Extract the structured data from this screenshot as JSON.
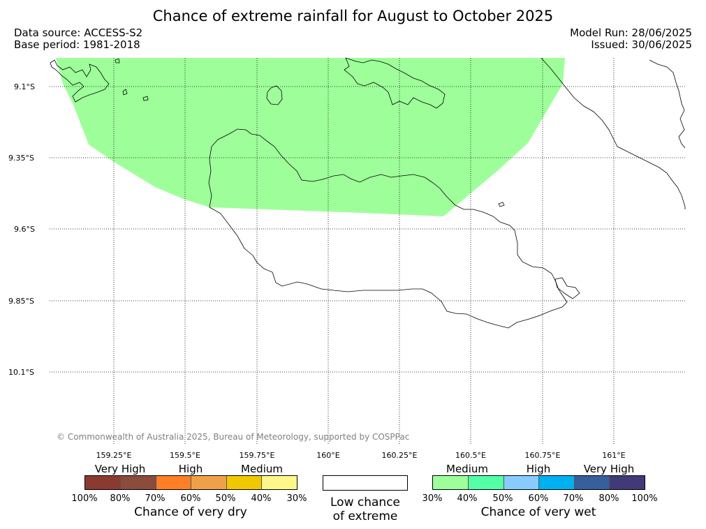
{
  "title": "Chance of extreme rainfall for August to October 2025",
  "meta": {
    "data_source": "Data source: ACCESS-S2",
    "base_period": "Base period: 1981-2018",
    "model_run": "Model Run: 28/06/2025",
    "issued": "Issued: 30/06/2025"
  },
  "map": {
    "lat_labels": [
      "9.1°S",
      "9.35°S",
      "9.6°S",
      "9.85°S",
      "10.1°S"
    ],
    "lon_labels": [
      "159.25°E",
      "159.5°E",
      "159.75°E",
      "160°E",
      "160.25°E",
      "160.5°E",
      "160.75°E",
      "161°E"
    ],
    "shaded_region_category": "Very wet: Medium (30%–40%)",
    "shaded_color": "#9eff9a",
    "copyright": "© Commonwealth of Australia 2025, Bureau of Meteorology, supported by COSPPac"
  },
  "legend": {
    "dry": {
      "categories": [
        "Very High",
        "High",
        "Medium"
      ],
      "colors": [
        "#8b3a32",
        "#8b4c3c",
        "#ff7f27",
        "#f0a048",
        "#f0c800",
        "#fff78a"
      ],
      "ticks": [
        "100%",
        "80%",
        "70%",
        "60%",
        "50%",
        "40%",
        "30%"
      ],
      "title": "Chance of very dry"
    },
    "neutral": {
      "line1": "Low chance",
      "line2": "of extreme"
    },
    "wet": {
      "categories": [
        "Medium",
        "High",
        "Very High"
      ],
      "colors": [
        "#9eff9a",
        "#55ffa8",
        "#88ccff",
        "#00b0f0",
        "#365f9c",
        "#413a78"
      ],
      "ticks": [
        "30%",
        "40%",
        "50%",
        "60%",
        "70%",
        "80%",
        "100%"
      ],
      "title": "Chance of very wet"
    }
  }
}
